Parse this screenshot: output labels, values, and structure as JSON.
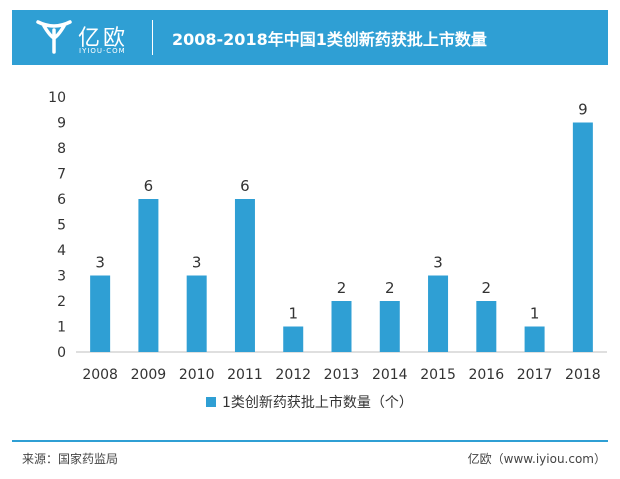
{
  "header": {
    "logo_name": "亿欧",
    "logo_sub": "IYIOU·COM",
    "title": "2008-2018年中国1类创新药获批上市数量"
  },
  "footer": {
    "source": "来源：国家药监局",
    "credit": "亿欧（www.iyiou.com）"
  },
  "colors": {
    "accent": "#2f9fd4",
    "bar": "#2f9fd4"
  },
  "chart_data": {
    "type": "bar",
    "title": "2008-2018年中国1类创新药获批上市数量",
    "categories": [
      "2008",
      "2009",
      "2010",
      "2011",
      "2012",
      "2013",
      "2014",
      "2015",
      "2016",
      "2017",
      "2018"
    ],
    "series": [
      {
        "name": "1类创新药获批上市数量（个）",
        "values": [
          3,
          6,
          3,
          6,
          1,
          2,
          2,
          3,
          2,
          1,
          9
        ]
      }
    ],
    "ylim": [
      0,
      10
    ],
    "yticks": [
      0,
      1,
      2,
      3,
      4,
      5,
      6,
      7,
      8,
      9,
      10
    ],
    "grid": false,
    "legend": "bottom",
    "data_labels": true
  }
}
